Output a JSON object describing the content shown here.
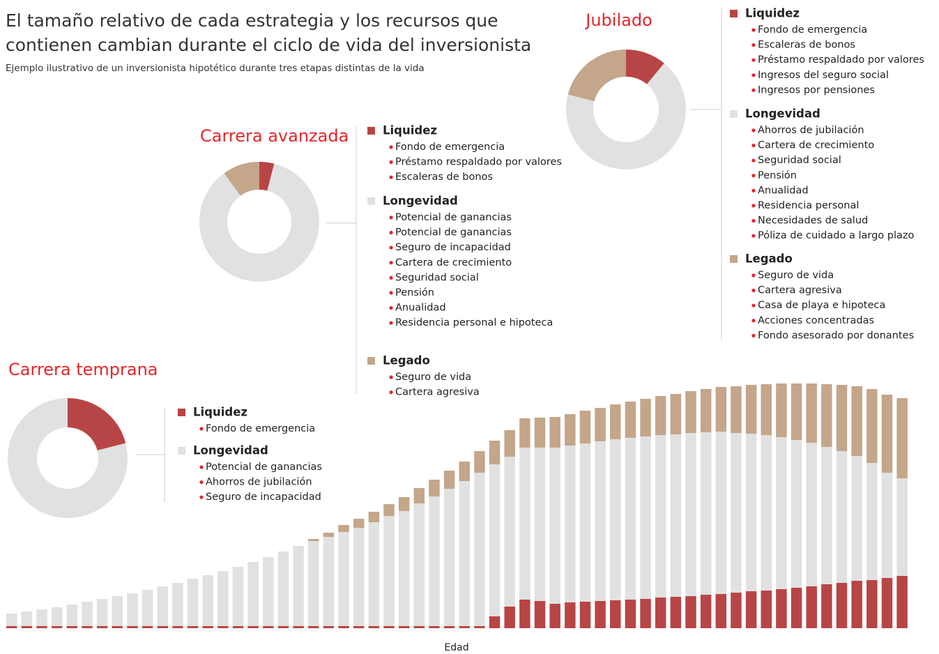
{
  "title": "El tamaño relativo de cada estrategia y los recursos que contienen cambian durante el ciclo de vida del inversionista",
  "subtitle": "Ejemplo ilustrativo de un inversionista hipotético durante tres etapas distintas de la vida",
  "chart_data": [
    {
      "type": "donut",
      "title": "Jubilado",
      "categories": [
        "Liquidez",
        "Longevidad",
        "Legado"
      ],
      "values": [
        11,
        68,
        21
      ],
      "colors": [
        "#b84545",
        "#e1e1e1",
        "#c4a68a"
      ],
      "legend_items": [
        [
          "Fondo de emergencia",
          "Escaleras de bonos",
          "Préstamo respaldado por valores",
          "Ingresos del seguro social",
          "Ingresos por pensiones"
        ],
        [
          "Ahorros de jubilación",
          "Cartera de crecimiento",
          "Seguridad social",
          "Pensión",
          "Anualidad",
          "Residencia personal",
          "Necesidades de salud",
          "Póliza de cuidado a largo plazo"
        ],
        [
          "Seguro de vida",
          "Cartera agresiva",
          "Casa de playa e hipoteca",
          "Acciones concentradas",
          "Fondo asesorado por donantes"
        ]
      ]
    },
    {
      "type": "donut",
      "title": "Carrera avanzada",
      "categories": [
        "Liquidez",
        "Longevidad",
        "Legado"
      ],
      "values": [
        4,
        86,
        10
      ],
      "colors": [
        "#b84545",
        "#e1e1e1",
        "#c4a68a"
      ],
      "legend_items": [
        [
          "Fondo de emergencia",
          "Préstamo respaldado por valores",
          "Escaleras de bonos"
        ],
        [
          "Potencial de ganancias",
          "Potencial de ganancias",
          "Seguro de incapacidad",
          "Cartera de crecimiento",
          "Seguridad social",
          "Pensión",
          "Anualidad",
          "Residencia personal e hipoteca"
        ],
        [
          "Seguro de vida",
          "Cartera agresiva"
        ]
      ]
    },
    {
      "type": "donut",
      "title": "Carrera temprana",
      "categories": [
        "Liquidez",
        "Longevidad"
      ],
      "values": [
        21,
        79
      ],
      "colors": [
        "#b84545",
        "#e1e1e1"
      ],
      "legend_items": [
        [
          "Fondo de emergencia"
        ],
        [
          "Potencial de ganancias",
          "Ahorros de jubilación",
          "Seguro de incapacidad"
        ]
      ]
    },
    {
      "type": "bar",
      "stacked": true,
      "x_label": "Edad",
      "categories": [
        null,
        null,
        null,
        null,
        null,
        null,
        null,
        null,
        null,
        null,
        null,
        null,
        null,
        null,
        null,
        null,
        null,
        null,
        null,
        null,
        null,
        null,
        null,
        null,
        null,
        null,
        null,
        null,
        null,
        null,
        null,
        null,
        null,
        null,
        null,
        null,
        null,
        null,
        null,
        null,
        null,
        null,
        null,
        null,
        null,
        null,
        null,
        null,
        null,
        null,
        null,
        null,
        null,
        null,
        null,
        null,
        null,
        null,
        null,
        null
      ],
      "ylim": [
        0,
        360
      ],
      "series": [
        {
          "color": "#b84545",
          "values": [
            3,
            3,
            3,
            3,
            3,
            3,
            3,
            3,
            3,
            3,
            3,
            3,
            3,
            3,
            3,
            3,
            3,
            3,
            3,
            3,
            3,
            3,
            3,
            3,
            3,
            3,
            3,
            3,
            3,
            3,
            3,
            3,
            17,
            31,
            41,
            39,
            35,
            37,
            38,
            39,
            40,
            41,
            42,
            44,
            45,
            46,
            48,
            49,
            51,
            53,
            54,
            56,
            58,
            60,
            63,
            65,
            68,
            69,
            72,
            75
          ]
        },
        {
          "color": "#e1e1e1",
          "values": [
            18,
            21,
            24,
            27,
            31,
            35,
            39,
            43,
            47,
            52,
            57,
            62,
            68,
            73,
            79,
            85,
            92,
            99,
            107,
            115,
            122,
            128,
            135,
            141,
            149,
            158,
            165,
            176,
            186,
            197,
            208,
            220,
            218,
            215,
            218,
            220,
            224,
            225,
            227,
            229,
            231,
            232,
            233,
            233,
            233,
            234,
            233,
            233,
            229,
            226,
            223,
            218,
            212,
            206,
            197,
            189,
            179,
            168,
            151,
            140
          ]
        },
        {
          "color": "#c4a68a",
          "values": [
            0,
            0,
            0,
            0,
            0,
            0,
            0,
            0,
            0,
            0,
            0,
            0,
            0,
            0,
            0,
            0,
            0,
            0,
            0,
            0,
            3,
            6,
            10,
            13,
            15,
            17,
            20,
            22,
            24,
            26,
            28,
            31,
            34,
            38,
            42,
            43,
            44,
            45,
            47,
            48,
            50,
            52,
            54,
            56,
            58,
            60,
            62,
            64,
            67,
            70,
            73,
            77,
            81,
            85,
            90,
            95,
            100,
            106,
            112,
            115
          ]
        }
      ]
    }
  ]
}
